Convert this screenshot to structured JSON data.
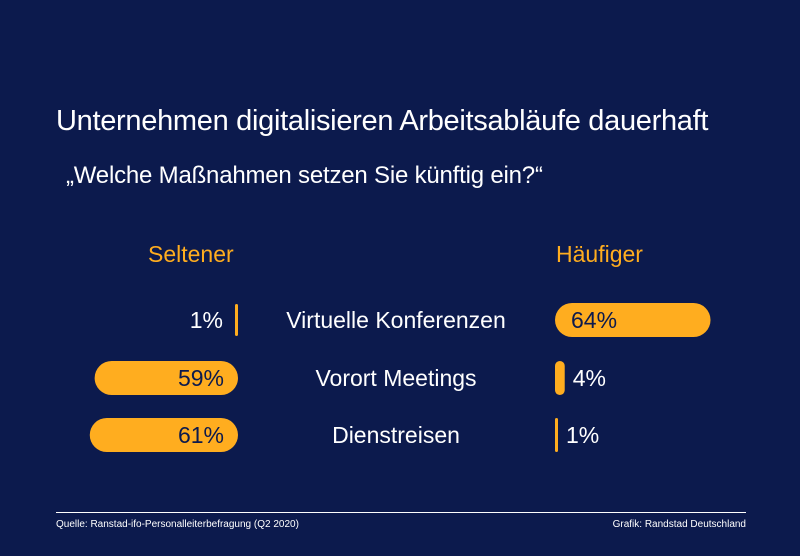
{
  "title": "Unternehmen digitalisieren Arbeitsabläufe dauerhaft",
  "subtitle": "„Welche Maßnahmen setzen Sie künftig ein?“",
  "column_left": "Seltener",
  "column_right": "Häufiger",
  "footer": {
    "source": "Quelle: Ranstad-ifo-Personalleiterbefragung (Q2 2020)",
    "credit": "Grafik: Randstad Deutschland"
  },
  "colors": {
    "background": "#0c1a4d",
    "accent": "#ffad1f",
    "text": "#ffffff"
  },
  "chart_data": {
    "type": "bar",
    "categories": [
      "Virtuelle Konferenzen",
      "Vorort Meetings",
      "Dienstreisen"
    ],
    "series": [
      {
        "name": "Seltener",
        "values": [
          1,
          59,
          61
        ],
        "labels": [
          "1%",
          "59%",
          "61%"
        ]
      },
      {
        "name": "Häufiger",
        "values": [
          64,
          4,
          1
        ],
        "labels": [
          "64%",
          "4%",
          "1%"
        ]
      }
    ],
    "unit": "%"
  }
}
